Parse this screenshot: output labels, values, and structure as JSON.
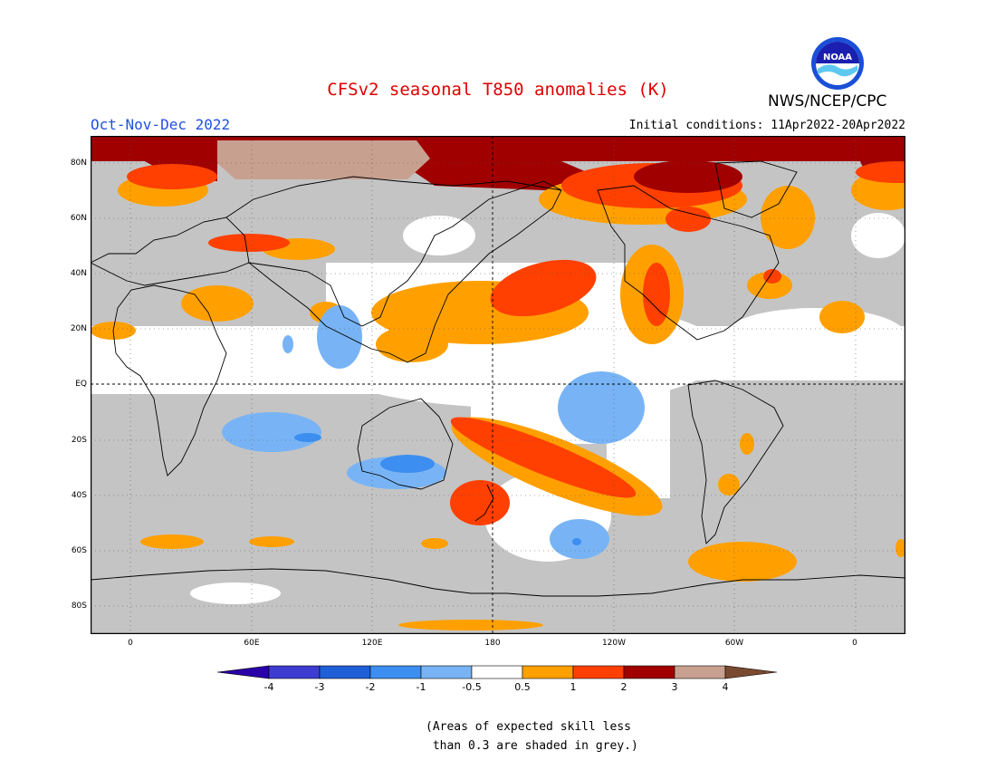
{
  "header": {
    "title": "CFSv2 seasonal T850 anomalies (K)",
    "agency": "NWS/NCEP/CPC",
    "logo_text": "NOAA",
    "season": "Oct-Nov-Dec 2022",
    "initial_conditions": "Initial conditions: 11Apr2022-20Apr2022"
  },
  "axes": {
    "lat_labels": [
      "80N",
      "60N",
      "40N",
      "20N",
      "EQ",
      "20S",
      "40S",
      "60S",
      "80S"
    ],
    "lon_labels": [
      "0",
      "60E",
      "120E",
      "180",
      "120W",
      "60W",
      "0"
    ]
  },
  "colorbar": {
    "labels": [
      "-4",
      "-3",
      "-2",
      "-1",
      "-0.5",
      "0.5",
      "1",
      "2",
      "3",
      "4"
    ],
    "colors": [
      "#2a00a8",
      "#3c3cd0",
      "#1f5fd8",
      "#3c8ff0",
      "#78b4f5",
      "#ffffff",
      "#ffa000",
      "#ff4000",
      "#a00000",
      "#c8a090",
      "#7a4a30"
    ]
  },
  "colors": {
    "grey_mask": "#c4c4c4",
    "orange": "#ffa000",
    "red": "#ff4000",
    "darkred": "#a00000",
    "tan": "#c8a090",
    "lightblue": "#78b4f5",
    "blue": "#3c8ff0"
  },
  "footnote": "(Areas of expected skill less\n than 0.3 are shaded in grey.)"
}
